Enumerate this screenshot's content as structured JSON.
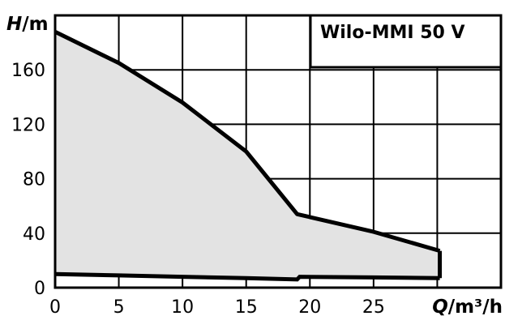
{
  "chart_data": {
    "type": "area",
    "title": "Wilo-MMI 50 V",
    "xlabel_var": "Q",
    "xlabel_unit": "/m³/h",
    "ylabel_var": "H",
    "ylabel_unit": "/m",
    "xlim": [
      0,
      35
    ],
    "ylim": [
      0,
      200
    ],
    "xticks": [
      "0",
      "5",
      "10",
      "15",
      "20",
      "25"
    ],
    "yticks": [
      "0",
      "40",
      "80",
      "120",
      "160"
    ],
    "grid": true,
    "series": [
      {
        "role": "max_curve",
        "points": [
          [
            0,
            188
          ],
          [
            5,
            165
          ],
          [
            10,
            136
          ],
          [
            15,
            100
          ],
          [
            19,
            54
          ],
          [
            25,
            41
          ],
          [
            30.2,
            27
          ]
        ]
      },
      {
        "role": "min_curve",
        "points": [
          [
            0,
            10
          ],
          [
            5,
            9
          ],
          [
            10,
            8
          ],
          [
            15,
            7
          ],
          [
            19,
            6
          ],
          [
            19.2,
            8
          ],
          [
            25,
            7.5
          ],
          [
            30.2,
            7
          ]
        ]
      }
    ],
    "colors": {
      "fill": "#e3e3e3",
      "line": "#000000",
      "grid": "#000000"
    }
  }
}
